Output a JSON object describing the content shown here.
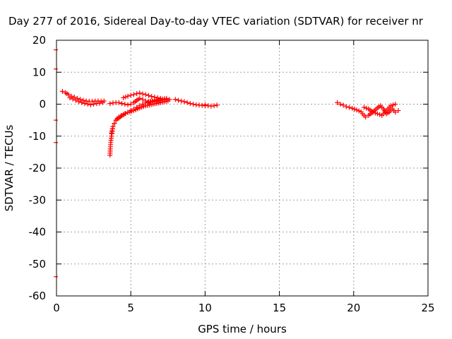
{
  "chart_data": {
    "type": "scatter",
    "title": "Day 277 of 2016, Sidereal Day-to-day VTEC variation (SDTVAR) for receiver nr",
    "xlabel": "GPS time / hours",
    "ylabel": "SDTVAR / TECUs",
    "xlim": [
      0,
      25
    ],
    "ylim": [
      -60,
      20
    ],
    "xticks": [
      0,
      5,
      10,
      15,
      20,
      25
    ],
    "yticks": [
      -60,
      -50,
      -40,
      -30,
      -20,
      -10,
      0,
      10,
      20
    ],
    "grid": true,
    "marker": "+",
    "series": [
      {
        "name": "SDTVAR",
        "color": "#ff0000",
        "segments": [
          {
            "x": [
              0.4,
              0.6,
              0.8,
              1.0,
              1.2,
              1.4,
              1.6,
              1.8,
              2.0,
              2.2,
              2.4,
              2.6,
              2.8,
              3.0,
              3.2
            ],
            "y": [
              4.0,
              3.6,
              3.0,
              2.5,
              2.2,
              1.8,
              1.5,
              1.2,
              1.0,
              0.9,
              0.9,
              1.0,
              1.0,
              0.9,
              1.0
            ]
          },
          {
            "x": [
              0.9,
              1.1,
              1.3,
              1.5,
              1.7,
              1.9,
              2.1,
              2.3,
              2.5,
              2.7,
              2.9,
              3.1
            ],
            "y": [
              2.0,
              1.6,
              1.2,
              0.8,
              0.5,
              0.2,
              0.0,
              -0.2,
              0.0,
              0.2,
              0.3,
              0.5
            ]
          },
          {
            "x": [
              3.6,
              3.62,
              3.65,
              3.7,
              3.75,
              3.8,
              3.9,
              4.0,
              4.2,
              4.5,
              4.8,
              5.2,
              5.6,
              6.0,
              6.5,
              7.0,
              7.5
            ],
            "y": [
              -16.0,
              -14.0,
              -12.0,
              -10.0,
              -8.5,
              -7.0,
              -6.0,
              -5.0,
              -4.0,
              -3.2,
              -2.6,
              -2.0,
              -1.2,
              -0.5,
              0.0,
              0.5,
              1.0
            ]
          },
          {
            "x": [
              3.7,
              3.8,
              3.9,
              4.0,
              4.2,
              4.4,
              4.6,
              4.8,
              5.0,
              5.2,
              5.4,
              5.6,
              5.8,
              6.0,
              6.3,
              6.6,
              7.0,
              7.4
            ],
            "y": [
              -9.0,
              -7.0,
              -6.0,
              -5.0,
              -4.3,
              -3.6,
              -3.0,
              -2.5,
              -2.0,
              -1.5,
              -1.0,
              -0.5,
              0.0,
              0.4,
              0.8,
              1.2,
              1.5,
              1.8
            ]
          },
          {
            "x": [
              3.6,
              3.8,
              4.0,
              4.2,
              4.4,
              4.6,
              4.8,
              5.0,
              5.2,
              5.4,
              5.6,
              5.8,
              6.0,
              6.2,
              6.5,
              6.8,
              7.1,
              7.4,
              7.6
            ],
            "y": [
              0.2,
              0.4,
              0.5,
              0.5,
              0.2,
              0.0,
              -0.2,
              0.0,
              0.5,
              1.2,
              1.8,
              1.5,
              1.0,
              0.8,
              0.8,
              1.0,
              1.2,
              1.4,
              1.5
            ]
          },
          {
            "x": [
              4.5,
              4.8,
              5.0,
              5.2,
              5.4,
              5.6,
              5.8,
              6.0,
              6.2,
              6.4,
              6.6,
              6.8,
              7.0
            ],
            "y": [
              2.0,
              2.5,
              2.8,
              3.0,
              3.3,
              3.5,
              3.2,
              3.0,
              2.7,
              2.4,
              2.2,
              2.0,
              1.8
            ]
          },
          {
            "x": [
              8.0,
              8.2,
              8.4,
              8.6,
              8.8,
              9.0,
              9.2,
              9.4,
              9.6,
              9.8,
              10.0
            ],
            "y": [
              1.5,
              1.2,
              1.0,
              0.8,
              0.5,
              0.2,
              0.0,
              -0.2,
              -0.3,
              -0.4,
              -0.5
            ]
          },
          {
            "x": [
              10.0,
              10.2,
              10.4,
              10.6,
              10.8
            ],
            "y": [
              -0.2,
              -0.5,
              -0.6,
              -0.5,
              -0.3
            ]
          },
          {
            "x": [
              18.9,
              19.1,
              19.3,
              19.5,
              19.7,
              19.9,
              20.2,
              20.5
            ],
            "y": [
              0.5,
              0.0,
              -0.3,
              -0.8,
              -1.0,
              -1.3,
              -1.8,
              -2.4
            ]
          },
          {
            "x": [
              20.6,
              20.8,
              21.0,
              21.2,
              21.4,
              21.6,
              21.8,
              22.0,
              22.2,
              22.4,
              22.6,
              22.8,
              23.0
            ],
            "y": [
              -3.0,
              -4.0,
              -3.5,
              -2.8,
              -2.0,
              -1.2,
              -0.5,
              -1.5,
              -3.0,
              -2.4,
              -1.5,
              -2.5,
              -2.0
            ]
          },
          {
            "x": [
              20.7,
              21.0,
              21.3,
              21.6,
              21.9,
              22.2,
              22.5,
              22.8
            ],
            "y": [
              -1.0,
              -1.5,
              -2.5,
              -3.0,
              -3.5,
              -2.0,
              -0.5,
              0.0
            ]
          }
        ]
      }
    ],
    "edge_marks_y": [
      17,
      11,
      -5,
      -12,
      -54
    ]
  }
}
